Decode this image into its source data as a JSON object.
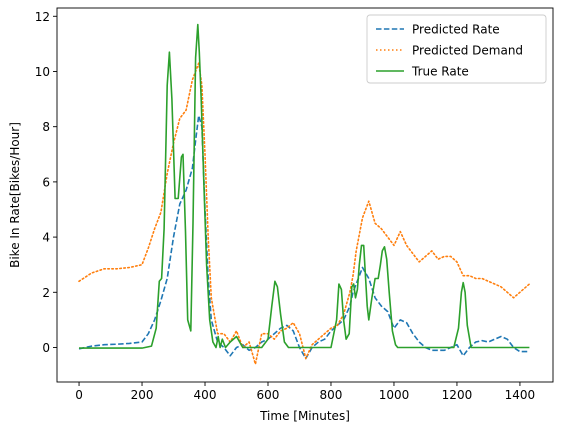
{
  "chart_data": {
    "type": "line",
    "xlabel": "Time [Minutes]",
    "ylabel": "Bike In Rate[Bikes/Hour]",
    "xlim": [
      -70,
      1505
    ],
    "ylim": [
      -1.25,
      12.3
    ],
    "xticks": [
      0,
      200,
      400,
      600,
      800,
      1000,
      1200,
      1400
    ],
    "yticks": [
      0,
      2,
      4,
      6,
      8,
      10,
      12
    ],
    "legend": "top-right",
    "grid": false,
    "series": [
      {
        "name": "Predicted Rate",
        "color": "#1f77b4",
        "style": "dashed",
        "x": [
          0,
          40,
          80,
          120,
          160,
          200,
          220,
          240,
          260,
          280,
          300,
          320,
          340,
          360,
          370,
          380,
          390,
          400,
          410,
          420,
          440,
          460,
          480,
          500,
          520,
          540,
          560,
          580,
          600,
          620,
          640,
          660,
          680,
          700,
          720,
          740,
          760,
          780,
          800,
          820,
          840,
          860,
          870,
          880,
          900,
          920,
          940,
          960,
          980,
          1000,
          1020,
          1040,
          1060,
          1080,
          1100,
          1120,
          1140,
          1160,
          1180,
          1200,
          1220,
          1240,
          1260,
          1280,
          1300,
          1320,
          1340,
          1360,
          1380,
          1400,
          1430
        ],
        "y": [
          -0.05,
          0.05,
          0.1,
          0.12,
          0.15,
          0.2,
          0.5,
          1.0,
          1.7,
          2.5,
          4.0,
          5.2,
          5.7,
          6.5,
          7.5,
          8.4,
          8.0,
          5.0,
          2.5,
          1.0,
          0.2,
          0.0,
          -0.3,
          0.0,
          0.1,
          -0.1,
          0.0,
          0.2,
          0.3,
          0.5,
          0.7,
          0.8,
          0.6,
          0.0,
          -0.4,
          0.0,
          0.2,
          0.3,
          0.6,
          0.8,
          1.0,
          1.5,
          2.0,
          2.3,
          2.9,
          2.5,
          1.8,
          1.5,
          1.3,
          0.7,
          1.0,
          0.9,
          0.5,
          0.2,
          0.0,
          -0.1,
          -0.1,
          -0.1,
          0.0,
          0.1,
          -0.3,
          0.0,
          0.2,
          0.25,
          0.2,
          0.3,
          0.4,
          0.3,
          0.0,
          -0.15,
          -0.15
        ]
      },
      {
        "name": "Predicted Demand",
        "color": "#ff7f0e",
        "style": "dotted",
        "x": [
          0,
          40,
          80,
          120,
          160,
          200,
          220,
          240,
          260,
          280,
          300,
          320,
          340,
          360,
          380,
          390,
          400,
          410,
          420,
          440,
          460,
          480,
          500,
          520,
          540,
          560,
          580,
          600,
          620,
          640,
          660,
          680,
          700,
          720,
          740,
          760,
          780,
          800,
          820,
          840,
          860,
          870,
          880,
          900,
          920,
          940,
          960,
          980,
          1000,
          1020,
          1040,
          1060,
          1080,
          1100,
          1120,
          1140,
          1160,
          1180,
          1200,
          1220,
          1240,
          1260,
          1280,
          1300,
          1320,
          1340,
          1360,
          1380,
          1400,
          1430
        ],
        "y": [
          2.4,
          2.7,
          2.85,
          2.85,
          2.9,
          3.0,
          3.6,
          4.3,
          4.9,
          6.3,
          7.4,
          8.3,
          8.6,
          9.7,
          10.3,
          9.5,
          7.0,
          4.0,
          1.8,
          0.5,
          0.5,
          0.2,
          0.6,
          0.0,
          0.2,
          -0.6,
          0.5,
          0.5,
          0.3,
          0.6,
          0.7,
          0.9,
          0.5,
          -0.4,
          0.1,
          0.3,
          0.5,
          0.7,
          0.8,
          1.2,
          2.0,
          2.6,
          3.5,
          4.7,
          5.3,
          4.5,
          4.3,
          4.0,
          3.7,
          4.2,
          3.7,
          3.4,
          3.1,
          3.3,
          3.5,
          3.2,
          3.3,
          3.3,
          3.1,
          2.6,
          2.6,
          2.5,
          2.5,
          2.4,
          2.3,
          2.2,
          2.0,
          1.8,
          2.0,
          2.3
        ]
      },
      {
        "name": "True Rate",
        "color": "#2ca02c",
        "style": "solid",
        "x": [
          0,
          200,
          230,
          245,
          255,
          262,
          270,
          280,
          287,
          295,
          305,
          315,
          325,
          330,
          338,
          345,
          355,
          362,
          370,
          377,
          382,
          388,
          396,
          405,
          415,
          425,
          435,
          442,
          448,
          455,
          465,
          480,
          500,
          520,
          580,
          600,
          612,
          622,
          630,
          640,
          652,
          665,
          700,
          800,
          818,
          825,
          833,
          840,
          848,
          858,
          866,
          872,
          878,
          884,
          890,
          897,
          904,
          910,
          915,
          920,
          930,
          940,
          950,
          957,
          963,
          970,
          977,
          985,
          995,
          1005,
          1012,
          1020,
          1050,
          1190,
          1205,
          1214,
          1220,
          1226,
          1233,
          1245,
          1260,
          1300,
          1430
        ],
        "y": [
          -0.02,
          -0.02,
          0.05,
          0.7,
          2.4,
          2.5,
          4.3,
          9.5,
          10.7,
          9.0,
          5.4,
          5.4,
          6.9,
          7.0,
          4.2,
          1.0,
          0.6,
          4.5,
          10.5,
          11.7,
          10.7,
          9.0,
          6.0,
          3.0,
          1.0,
          0.2,
          0.0,
          0.4,
          0.0,
          0.3,
          0.0,
          0.2,
          0.4,
          0.0,
          0.0,
          0.3,
          1.5,
          2.4,
          2.2,
          1.2,
          0.2,
          0.0,
          0.0,
          0.0,
          1.0,
          2.3,
          2.1,
          1.0,
          0.3,
          0.5,
          2.2,
          2.3,
          1.8,
          2.1,
          3.0,
          3.7,
          3.7,
          2.5,
          1.5,
          1.0,
          1.8,
          2.5,
          2.5,
          3.0,
          3.5,
          3.65,
          3.2,
          2.0,
          0.6,
          0.1,
          0.0,
          0.0,
          0.0,
          0.0,
          0.7,
          2.0,
          2.35,
          2.0,
          0.8,
          0.0,
          0.0,
          0.0,
          0.0
        ]
      }
    ]
  }
}
